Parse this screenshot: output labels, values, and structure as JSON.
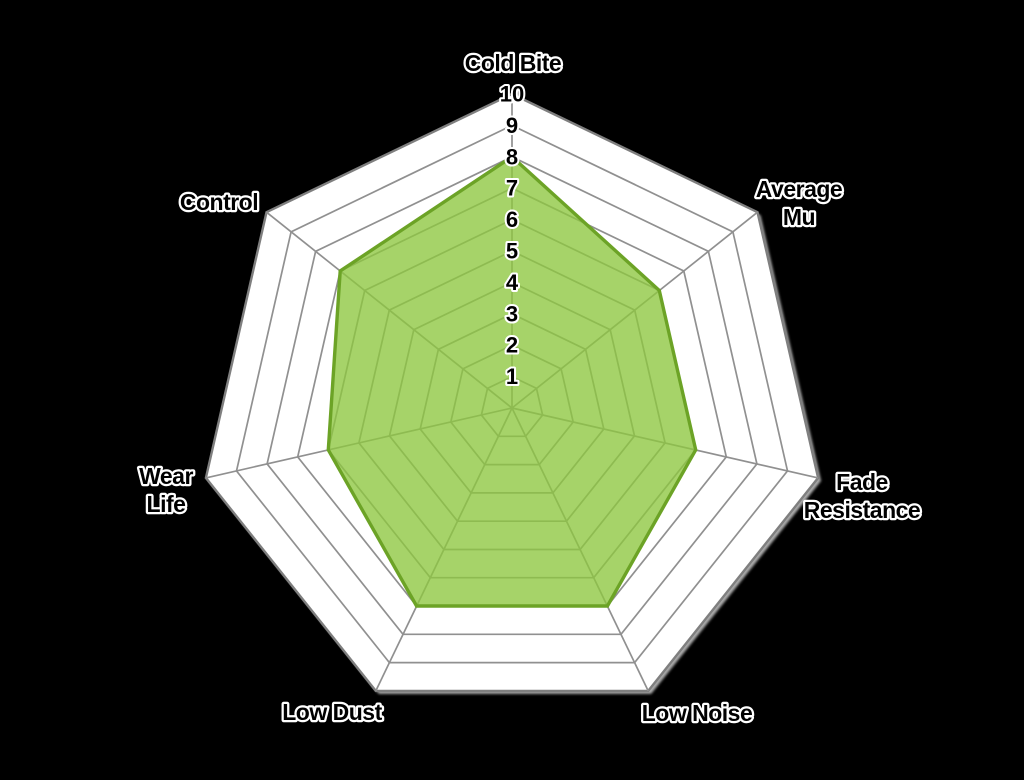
{
  "chart_data": {
    "type": "radar",
    "title": "",
    "categories": [
      "Cold Bite",
      "Average Mu",
      "Fade Resistance",
      "Low Noise",
      "Low Dust",
      "Wear Life",
      "Control"
    ],
    "label_lines": [
      [
        "Cold Bite"
      ],
      [
        "Average",
        "Mu"
      ],
      [
        "Fade",
        "Resistance"
      ],
      [
        "Low Noise"
      ],
      [
        "Low Dust"
      ],
      [
        "Wear",
        "Life"
      ],
      [
        "Control"
      ]
    ],
    "values": [
      8,
      6,
      6,
      7,
      7,
      6,
      7
    ],
    "scale": {
      "min": 0,
      "max": 10,
      "step": 1
    },
    "tick_labels": [
      "1",
      "2",
      "3",
      "4",
      "5",
      "6",
      "7",
      "8",
      "9",
      "10"
    ],
    "grid": true,
    "legend": null,
    "colors": {
      "page_background": "#000000",
      "chart_background": "#ffffff",
      "grid_line": "#909090",
      "outer_border": "#7f7f7f",
      "series_fill": "#8dc63f",
      "series_fill_opacity": 0.78,
      "series_stroke": "#6ca326",
      "label_text": "#000000",
      "label_outline": "#ffffff"
    }
  }
}
